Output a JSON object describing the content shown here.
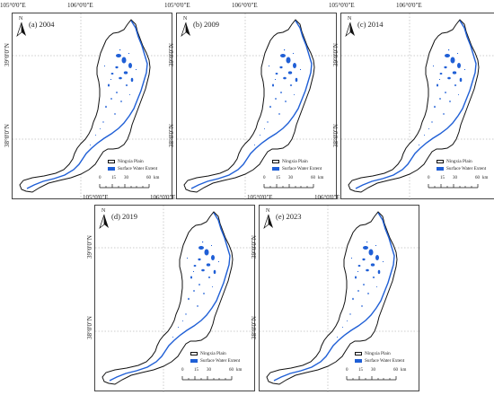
{
  "colors": {
    "water": "#1f5fd6",
    "outline": "#111111",
    "grid": "#9a9a9a"
  },
  "legend": {
    "plain_label": "Ningxia Plain",
    "water_label": "Surface Water Extent"
  },
  "north_label": "N",
  "coords": {
    "lon1": "105°0'0\"E",
    "lon2": "106°0'0\"E",
    "lat1": "39°0'0\"N",
    "lat2": "38°0'0\"N"
  },
  "scale": {
    "t0": "0",
    "t1": "15",
    "t2": "30",
    "t3": "60",
    "unit": "km"
  },
  "panels": [
    {
      "label": "(a) 2004"
    },
    {
      "label": "(b) 2009"
    },
    {
      "label": "(c) 2014"
    },
    {
      "label": "(d) 2019"
    },
    {
      "label": "(e) 2023"
    }
  ]
}
